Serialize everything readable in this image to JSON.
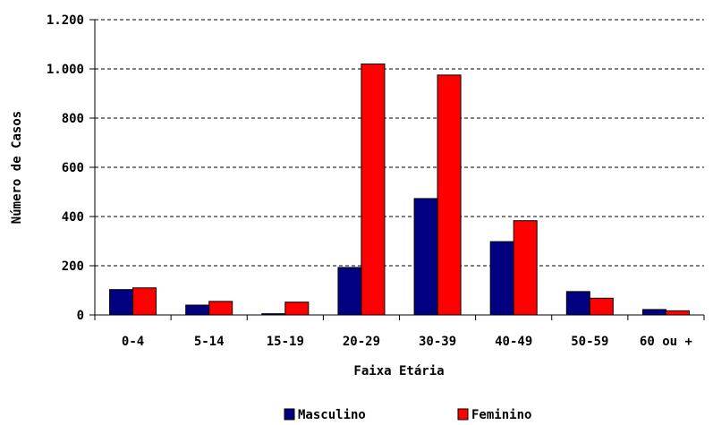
{
  "chart_data": {
    "type": "bar",
    "title": "",
    "xlabel": "Faixa Etária",
    "ylabel": "Número de Casos",
    "categories": [
      "0-4",
      "5-14",
      "15-19",
      "20-29",
      "30-39",
      "40-49",
      "50-59",
      "60 ou +"
    ],
    "series": [
      {
        "name": "Masculino",
        "color": "#000080",
        "values": [
          103,
          40,
          5,
          193,
          473,
          298,
          95,
          22
        ]
      },
      {
        "name": "Feminino",
        "color": "#ff0000",
        "values": [
          110,
          55,
          52,
          1020,
          975,
          383,
          68,
          17
        ]
      }
    ],
    "ylim": [
      0,
      1200
    ],
    "yticks": [
      0,
      200,
      400,
      600,
      800,
      1000,
      1200
    ],
    "ytick_labels": [
      "0",
      "200",
      "400",
      "600",
      "800",
      "1.000",
      "1.200"
    ],
    "grid": true,
    "legend_position": "bottom"
  }
}
